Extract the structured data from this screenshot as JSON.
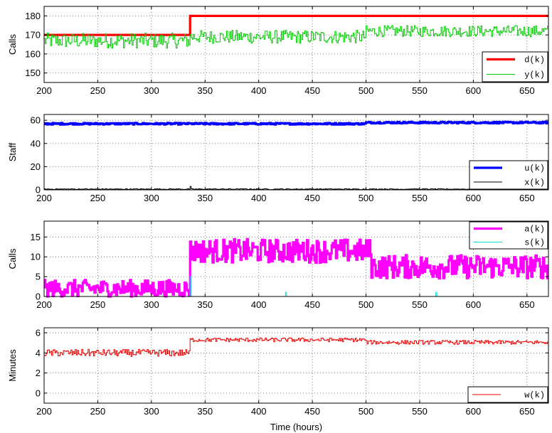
{
  "chart_data": [
    {
      "type": "line",
      "ylabel": "Calls",
      "xlabel": "",
      "xlim": [
        200,
        670
      ],
      "ylim": [
        145,
        185
      ],
      "xticks": [
        200,
        250,
        300,
        350,
        400,
        450,
        500,
        550,
        600,
        650
      ],
      "yticks": [
        150,
        160,
        170,
        180
      ],
      "grid": true,
      "legend_position": "bottom-right",
      "series": [
        {
          "name": "d(k)",
          "color": "#ff0000",
          "style": "step",
          "width": "thick",
          "points": [
            [
              200,
              170
            ],
            [
              336,
              170
            ],
            [
              336,
              180
            ],
            [
              670,
              180
            ]
          ]
        },
        {
          "name": "y(k)",
          "color": "#00cc00",
          "style": "noisy-step",
          "width": "thin",
          "segments": [
            {
              "from": 200,
              "to": 336,
              "mean": 167,
              "spread": 4
            },
            {
              "from": 336,
              "to": 500,
              "mean": 169,
              "spread": 3.5
            },
            {
              "from": 500,
              "to": 670,
              "mean": 172,
              "spread": 3
            }
          ]
        }
      ]
    },
    {
      "type": "line",
      "ylabel": "Staff",
      "xlabel": "",
      "xlim": [
        200,
        670
      ],
      "ylim": [
        0,
        65
      ],
      "xticks": [
        200,
        250,
        300,
        350,
        400,
        450,
        500,
        550,
        600,
        650
      ],
      "yticks": [
        0,
        20,
        40,
        60
      ],
      "grid": true,
      "legend_position": "bottom-right",
      "series": [
        {
          "name": "u(k)",
          "color": "#0000ff",
          "style": "noisy-step",
          "width": "thick",
          "segments": [
            {
              "from": 200,
              "to": 500,
              "mean": 57,
              "spread": 0.7
            },
            {
              "from": 500,
              "to": 670,
              "mean": 58,
              "spread": 0.7
            }
          ]
        },
        {
          "name": "x(k)",
          "color": "#000000",
          "style": "noisy-step",
          "width": "thin",
          "segments": [
            {
              "from": 200,
              "to": 670,
              "mean": 0.6,
              "spread": 0.4
            }
          ],
          "spikes": [
            [
              336,
              3
            ]
          ]
        }
      ]
    },
    {
      "type": "line",
      "ylabel": "Calls",
      "xlabel": "",
      "xlim": [
        200,
        670
      ],
      "ylim": [
        0,
        19
      ],
      "xticks": [
        200,
        250,
        300,
        350,
        400,
        450,
        500,
        550,
        600,
        650
      ],
      "yticks": [
        0,
        5,
        10,
        15
      ],
      "grid": true,
      "legend_position": "top-right",
      "series": [
        {
          "name": "a(k)",
          "color": "#ff00ff",
          "style": "noisy-step",
          "width": "thick",
          "segments": [
            {
              "from": 200,
              "to": 336,
              "mean": 2,
              "spread": 2.2
            },
            {
              "from": 336,
              "to": 505,
              "mean": 11.5,
              "spread": 3
            },
            {
              "from": 505,
              "to": 670,
              "mean": 7.5,
              "spread": 3
            }
          ]
        },
        {
          "name": "s(k)",
          "color": "#00dddd",
          "style": "noisy-step",
          "width": "thin",
          "segments": [
            {
              "from": 200,
              "to": 670,
              "mean": 0,
              "spread": 0
            }
          ],
          "spikes": [
            [
              336,
              5
            ],
            [
              425,
              1
            ],
            [
              565,
              1
            ]
          ]
        }
      ]
    },
    {
      "type": "line",
      "ylabel": "Minutes",
      "xlabel": "Time (hours)",
      "xlim": [
        200,
        670
      ],
      "ylim": [
        -1,
        6.5
      ],
      "xticks": [
        200,
        250,
        300,
        350,
        400,
        450,
        500,
        550,
        600,
        650
      ],
      "yticks": [
        0,
        2,
        4,
        6
      ],
      "grid": true,
      "legend_position": "bottom-right",
      "series": [
        {
          "name": "w(k)",
          "color": "#ee0000",
          "style": "noisy-step",
          "width": "thin",
          "segments": [
            {
              "from": 200,
              "to": 336,
              "mean": 4.0,
              "spread": 0.35
            },
            {
              "from": 336,
              "to": 500,
              "mean": 5.3,
              "spread": 0.2
            },
            {
              "from": 500,
              "to": 670,
              "mean": 5.05,
              "spread": 0.2
            }
          ]
        }
      ]
    }
  ]
}
